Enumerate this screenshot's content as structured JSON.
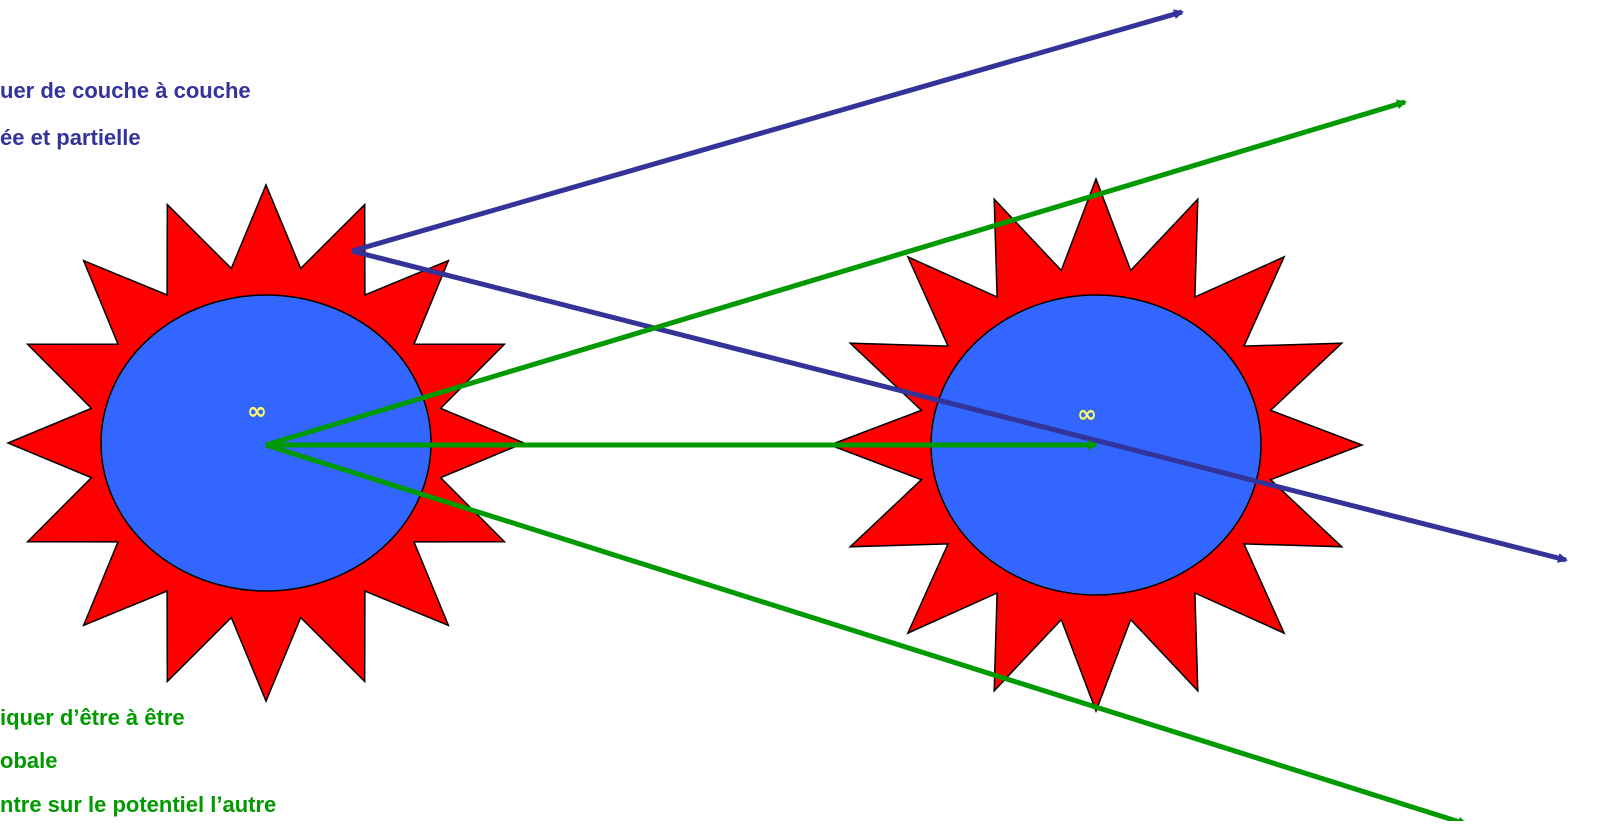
{
  "texts": {
    "blue_line_1": "uer de couche à couche",
    "blue_line_2": "ée et partielle",
    "green_line_1": "iquer d’être à être",
    "green_line_2": "obale",
    "green_line_3": "ntre sur le potentiel l’autre"
  },
  "beings": [
    {
      "name": "left-being",
      "symbol": "∞"
    },
    {
      "name": "right-being",
      "symbol": "∞"
    }
  ],
  "colors": {
    "star": "#ff0000",
    "core": "#3366ff",
    "blue_arrow": "#333399",
    "green_arrow": "#009900",
    "symbol": "#ffff66"
  },
  "icons": {
    "star": "sawtooth-star-shape",
    "core": "ellipse-shape",
    "arrow": "arrow-shape"
  }
}
